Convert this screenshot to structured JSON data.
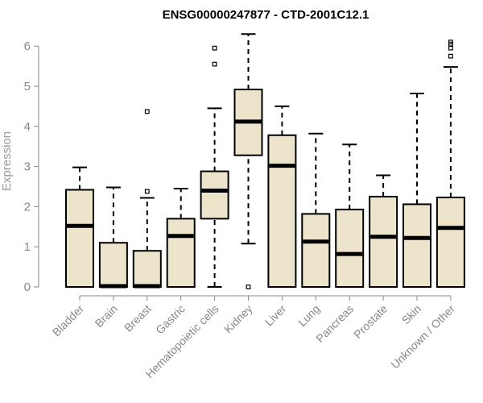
{
  "chart_data": {
    "type": "boxplot",
    "title": "ENSG00000247877 - CTD-2001C12.1",
    "xlabel": "",
    "ylabel": "Expression",
    "ylim": [
      0,
      6.3
    ],
    "yticks": [
      "0",
      "1",
      "2",
      "3",
      "4",
      "5",
      "6"
    ],
    "categories": [
      "Bladder",
      "Brain",
      "Breast",
      "Gastric",
      "Hematopoietic cells",
      "Kidney",
      "Liver",
      "Lung",
      "Pancreas",
      "Prostate",
      "Skin",
      "Unknown / Other"
    ],
    "boxes": [
      {
        "name": "Bladder",
        "min": 0,
        "q1": 0,
        "median": 1.52,
        "q3": 2.42,
        "max": 2.98,
        "outliers": []
      },
      {
        "name": "Brain",
        "min": 0,
        "q1": 0,
        "median": 0.02,
        "q3": 1.1,
        "max": 2.48,
        "outliers": []
      },
      {
        "name": "Breast",
        "min": 0,
        "q1": 0,
        "median": 0.02,
        "q3": 0.9,
        "max": 2.22,
        "outliers": [
          2.38,
          4.37
        ]
      },
      {
        "name": "Gastric",
        "min": 0,
        "q1": 0,
        "median": 1.27,
        "q3": 1.7,
        "max": 2.45,
        "outliers": []
      },
      {
        "name": "Hematopoietic cells",
        "min": 0,
        "q1": 1.7,
        "median": 2.4,
        "q3": 2.88,
        "max": 4.45,
        "outliers": [
          5.55,
          5.95
        ]
      },
      {
        "name": "Kidney",
        "min": 1.08,
        "q1": 3.28,
        "median": 4.12,
        "q3": 4.92,
        "max": 6.3,
        "outliers": [
          0
        ]
      },
      {
        "name": "Liver",
        "min": 0,
        "q1": 0,
        "median": 3.02,
        "q3": 3.78,
        "max": 4.5,
        "outliers": []
      },
      {
        "name": "Lung",
        "min": 0,
        "q1": 0,
        "median": 1.13,
        "q3": 1.82,
        "max": 3.82,
        "outliers": []
      },
      {
        "name": "Pancreas",
        "min": 0,
        "q1": 0,
        "median": 0.82,
        "q3": 1.93,
        "max": 3.55,
        "outliers": []
      },
      {
        "name": "Prostate",
        "min": 0,
        "q1": 0,
        "median": 1.25,
        "q3": 2.25,
        "max": 2.78,
        "outliers": []
      },
      {
        "name": "Skin",
        "min": 0,
        "q1": 0,
        "median": 1.22,
        "q3": 2.06,
        "max": 4.82,
        "outliers": []
      },
      {
        "name": "Unknown / Other",
        "min": 0,
        "q1": 0,
        "median": 1.47,
        "q3": 2.23,
        "max": 5.48,
        "outliers": [
          5.75,
          5.95,
          6.05,
          6.1
        ]
      }
    ],
    "box_fill": "#ede5cb",
    "grid": false,
    "legend": "none"
  }
}
